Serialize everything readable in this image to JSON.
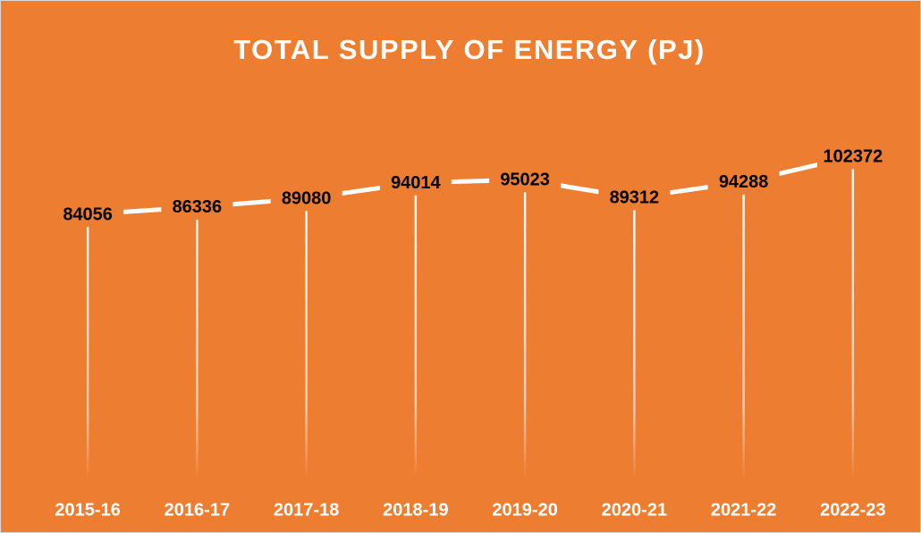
{
  "chart_data": {
    "type": "line",
    "title": "TOTAL SUPPLY OF ENERGY (PJ)",
    "categories": [
      "2015-16",
      "2016-17",
      "2017-18",
      "2018-19",
      "2019-20",
      "2020-21",
      "2021-22",
      "2022-23"
    ],
    "series": [
      {
        "name": "Total supply of energy",
        "color": "#ffffff",
        "values": [
          84056,
          86336,
          89080,
          94014,
          95023,
          89312,
          94288,
          102372
        ]
      }
    ],
    "ylim": [
      0,
      120000
    ]
  }
}
